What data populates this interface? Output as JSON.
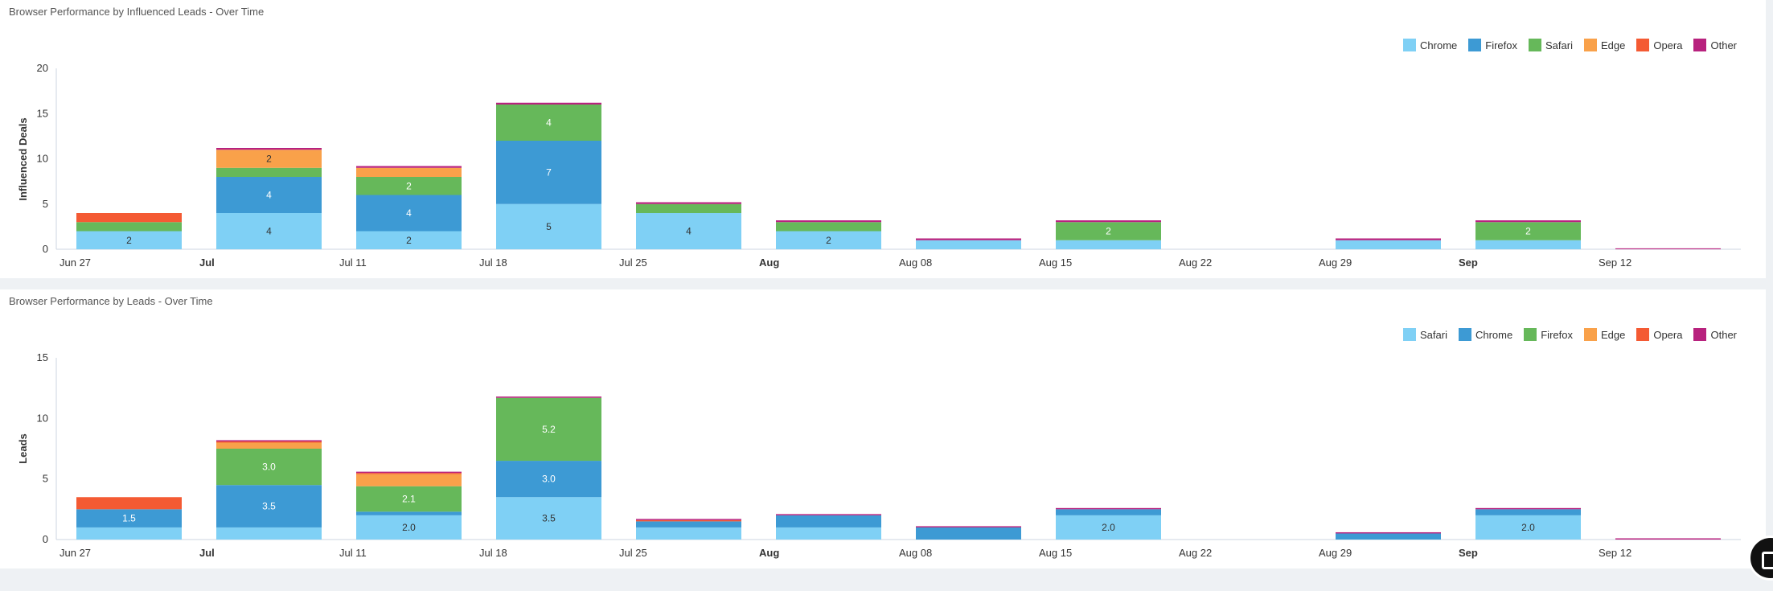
{
  "charts": {
    "colors": {
      "Chrome": "#7fd0f5",
      "Firefox": "#3d9ad4",
      "Safari": "#66b85a",
      "Edge": "#f9a14a",
      "Opera": "#f45a33",
      "Other": "#b8227e"
    },
    "safari_first_colors": {
      "Safari": "#7fd0f5",
      "Chrome": "#3d9ad4",
      "Firefox": "#66b85a",
      "Edge": "#f9a14a",
      "Opera": "#f45a33",
      "Other": "#b8227e"
    }
  },
  "chart_data": [
    {
      "type": "bar",
      "stacked": true,
      "title": "Browser Performance by Influenced Leads - Over Time",
      "ylabel": "Influenced Deals",
      "ylim": [
        0,
        20
      ],
      "yticks": [
        "0",
        "5",
        "10",
        "15",
        "20"
      ],
      "legend": "top-right",
      "grid": false,
      "categories": [
        "Jun 27",
        "Jul",
        "Jul 11",
        "Jul 18",
        "Jul 25",
        "Aug",
        "Aug 08",
        "Aug 15",
        "Aug 22",
        "Aug 29",
        "Sep",
        "Sep 12"
      ],
      "bold_ticks": [
        "Jul",
        "Aug",
        "Sep"
      ],
      "series": [
        {
          "name": "Chrome",
          "values": [
            2,
            4,
            2,
            5,
            4,
            2,
            1,
            1,
            0,
            1,
            1,
            0
          ]
        },
        {
          "name": "Firefox",
          "values": [
            0,
            4,
            4,
            7,
            0,
            0,
            0,
            0,
            0,
            0,
            0,
            0
          ]
        },
        {
          "name": "Safari",
          "values": [
            1,
            1,
            2,
            4,
            1,
            1,
            0,
            2,
            0,
            0,
            2,
            0
          ]
        },
        {
          "name": "Edge",
          "values": [
            0,
            2,
            1,
            0,
            0,
            0,
            0,
            0,
            0,
            0,
            0,
            0
          ]
        },
        {
          "name": "Opera",
          "values": [
            1,
            0,
            0,
            0,
            0,
            0,
            0,
            0,
            0,
            0,
            0,
            0
          ]
        },
        {
          "name": "Other",
          "values": [
            0,
            0.2,
            0.2,
            0.2,
            0.2,
            0.2,
            0.2,
            0.2,
            0,
            0.2,
            0.2,
            0.1
          ]
        }
      ],
      "data_labels": [
        {
          "category": "Jun 27",
          "series": "Chrome",
          "text": "2"
        },
        {
          "category": "Jul",
          "series": "Chrome",
          "text": "4"
        },
        {
          "category": "Jul",
          "series": "Firefox",
          "text": "4"
        },
        {
          "category": "Jul",
          "series": "Edge",
          "text": "2"
        },
        {
          "category": "Jul 11",
          "series": "Chrome",
          "text": "2"
        },
        {
          "category": "Jul 11",
          "series": "Firefox",
          "text": "4"
        },
        {
          "category": "Jul 11",
          "series": "Safari",
          "text": "2"
        },
        {
          "category": "Jul 18",
          "series": "Chrome",
          "text": "5"
        },
        {
          "category": "Jul 18",
          "series": "Firefox",
          "text": "7"
        },
        {
          "category": "Jul 18",
          "series": "Safari",
          "text": "4"
        },
        {
          "category": "Jul 25",
          "series": "Chrome",
          "text": "4"
        },
        {
          "category": "Aug",
          "series": "Chrome",
          "text": "2"
        },
        {
          "category": "Aug 15",
          "series": "Safari",
          "text": "2"
        },
        {
          "category": "Sep",
          "series": "Safari",
          "text": "2"
        }
      ]
    },
    {
      "type": "bar",
      "stacked": true,
      "title": "Browser Performance by Leads - Over Time",
      "ylabel": "Leads",
      "ylim": [
        0,
        15
      ],
      "yticks": [
        "0",
        "5",
        "10",
        "15"
      ],
      "legend": "top-right",
      "grid": false,
      "categories": [
        "Jun 27",
        "Jul",
        "Jul 11",
        "Jul 18",
        "Jul 25",
        "Aug",
        "Aug 08",
        "Aug 15",
        "Aug 22",
        "Aug 29",
        "Sep",
        "Sep 12"
      ],
      "bold_ticks": [
        "Jul",
        "Aug",
        "Sep"
      ],
      "series": [
        {
          "name": "Safari",
          "values": [
            1,
            1,
            2.0,
            3.5,
            1,
            1,
            0,
            2.0,
            0,
            0,
            2.0,
            0
          ]
        },
        {
          "name": "Chrome",
          "values": [
            1.5,
            3.5,
            0.3,
            3.0,
            0.5,
            1,
            1,
            0.5,
            0,
            0.5,
            0.5,
            0
          ]
        },
        {
          "name": "Firefox",
          "values": [
            0,
            3.0,
            2.1,
            5.2,
            0,
            0,
            0,
            0,
            0,
            0,
            0,
            0
          ]
        },
        {
          "name": "Edge",
          "values": [
            0,
            0.5,
            1.0,
            0,
            0,
            0,
            0,
            0,
            0,
            0,
            0,
            0
          ]
        },
        {
          "name": "Opera",
          "values": [
            1.0,
            0.1,
            0.1,
            0,
            0.1,
            0,
            0,
            0,
            0,
            0,
            0,
            0
          ]
        },
        {
          "name": "Other",
          "values": [
            0,
            0.1,
            0.1,
            0.1,
            0.1,
            0.1,
            0.1,
            0.1,
            0,
            0.1,
            0.1,
            0.1
          ]
        }
      ],
      "data_labels": [
        {
          "category": "Jun 27",
          "series": "Chrome",
          "text": "1.5"
        },
        {
          "category": "Jul",
          "series": "Chrome",
          "text": "3.5"
        },
        {
          "category": "Jul",
          "series": "Firefox",
          "text": "3.0"
        },
        {
          "category": "Jul 11",
          "series": "Safari",
          "text": "2.0"
        },
        {
          "category": "Jul 11",
          "series": "Firefox",
          "text": "2.1"
        },
        {
          "category": "Jul 18",
          "series": "Safari",
          "text": "3.5"
        },
        {
          "category": "Jul 18",
          "series": "Chrome",
          "text": "3.0"
        },
        {
          "category": "Jul 18",
          "series": "Firefox",
          "text": "5.2"
        },
        {
          "category": "Aug 15",
          "series": "Safari",
          "text": "2.0"
        },
        {
          "category": "Sep",
          "series": "Safari",
          "text": "2.0"
        }
      ]
    }
  ]
}
